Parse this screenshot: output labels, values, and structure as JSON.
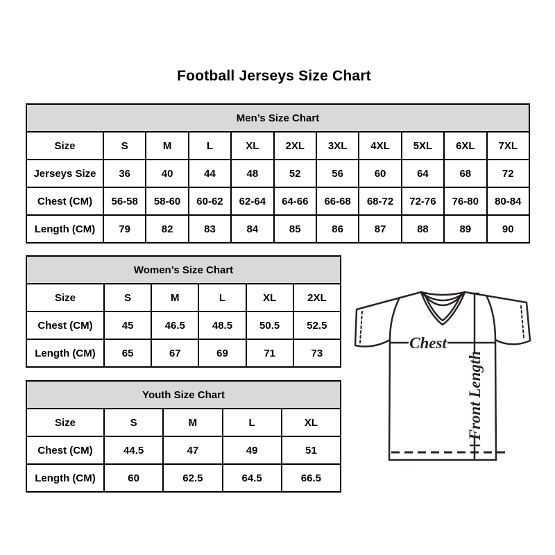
{
  "page": {
    "title": "Football Jerseys Size Chart"
  },
  "tables": {
    "men": {
      "header": "Men’s Size Chart",
      "rows": [
        {
          "label": "Size",
          "values": [
            "S",
            "M",
            "L",
            "XL",
            "2XL",
            "3XL",
            "4XL",
            "5XL",
            "6XL",
            "7XL"
          ]
        },
        {
          "label": "Jerseys Size",
          "values": [
            "36",
            "40",
            "44",
            "48",
            "52",
            "56",
            "60",
            "64",
            "68",
            "72"
          ]
        },
        {
          "label": "Chest (CM)",
          "values": [
            "56-58",
            "58-60",
            "60-62",
            "62-64",
            "64-66",
            "66-68",
            "68-72",
            "72-76",
            "76-80",
            "80-84"
          ]
        },
        {
          "label": "Length (CM)",
          "values": [
            "79",
            "82",
            "83",
            "84",
            "85",
            "86",
            "87",
            "88",
            "89",
            "90"
          ]
        }
      ]
    },
    "women": {
      "header": "Women’s Size Chart",
      "rows": [
        {
          "label": "Size",
          "values": [
            "S",
            "M",
            "L",
            "XL",
            "2XL"
          ]
        },
        {
          "label": "Chest (CM)",
          "values": [
            "45",
            "46.5",
            "48.5",
            "50.5",
            "52.5"
          ]
        },
        {
          "label": "Length (CM)",
          "values": [
            "65",
            "67",
            "69",
            "71",
            "73"
          ]
        }
      ]
    },
    "youth": {
      "header": "Youth Size Chart",
      "rows": [
        {
          "label": "Size",
          "values": [
            "S",
            "M",
            "L",
            "XL"
          ]
        },
        {
          "label": "Chest (CM)",
          "values": [
            "44.5",
            "47",
            "49",
            "51"
          ]
        },
        {
          "label": "Length (CM)",
          "values": [
            "60",
            "62.5",
            "64.5",
            "66.5"
          ]
        }
      ]
    }
  },
  "diagram": {
    "chest_label": "Chest",
    "front_length_label": "Front Length"
  },
  "colors": {
    "header_bg": "#d9d9d9",
    "table_border": "#000000",
    "diagram_line": "#2a2323",
    "text": "#000000"
  }
}
